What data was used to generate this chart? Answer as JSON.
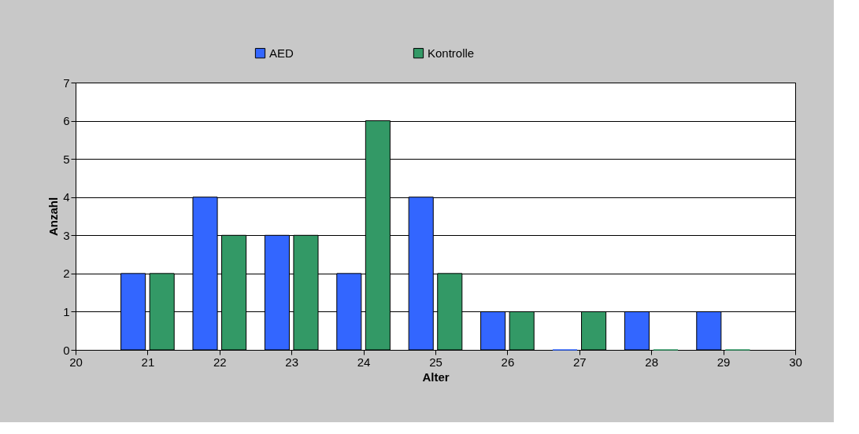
{
  "chart_data": {
    "type": "bar",
    "xlabel": "Alter",
    "ylabel": "Anzahl",
    "x": [
      21,
      22,
      23,
      24,
      25,
      26,
      27,
      28,
      29
    ],
    "series": [
      {
        "name": "AED",
        "color": "#3366ff",
        "values": [
          2,
          4,
          3,
          2,
          4,
          1,
          0,
          1,
          1
        ]
      },
      {
        "name": "Kontrolle",
        "color": "#339966",
        "values": [
          2,
          3,
          3,
          6,
          2,
          1,
          1,
          0,
          0
        ]
      }
    ],
    "xlim": [
      20,
      30
    ],
    "xticks": [
      20,
      21,
      22,
      23,
      24,
      25,
      26,
      27,
      28,
      29,
      30
    ],
    "ylim": [
      0,
      7
    ],
    "yticks": [
      0,
      1,
      2,
      3,
      4,
      5,
      6,
      7
    ],
    "grid": "y",
    "legend": "top"
  }
}
